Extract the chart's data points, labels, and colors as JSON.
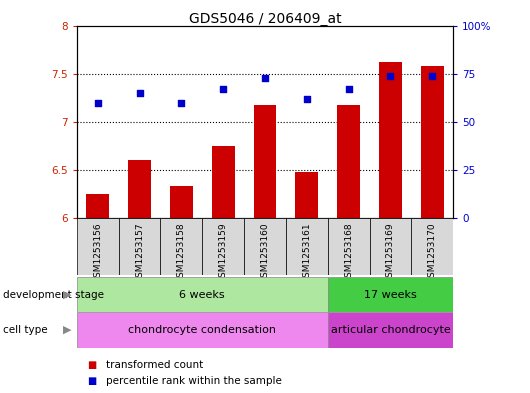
{
  "title": "GDS5046 / 206409_at",
  "samples": [
    "GSM1253156",
    "GSM1253157",
    "GSM1253158",
    "GSM1253159",
    "GSM1253160",
    "GSM1253161",
    "GSM1253168",
    "GSM1253169",
    "GSM1253170"
  ],
  "bar_values": [
    6.25,
    6.6,
    6.33,
    6.75,
    7.17,
    6.48,
    7.17,
    7.62,
    7.58
  ],
  "dot_values": [
    60,
    65,
    60,
    67,
    73,
    62,
    67,
    74,
    74
  ],
  "bar_color": "#cc0000",
  "dot_color": "#0000cc",
  "ylim_left": [
    6.0,
    8.0
  ],
  "ylim_right": [
    0,
    100
  ],
  "yticks_left": [
    6.0,
    6.5,
    7.0,
    7.5,
    8.0
  ],
  "yticks_right": [
    0,
    25,
    50,
    75,
    100
  ],
  "ytick_labels_right": [
    "0",
    "25",
    "50",
    "75",
    "100%"
  ],
  "grid_vals": [
    6.5,
    7.0,
    7.5
  ],
  "dev_stages": [
    {
      "label": "6 weeks",
      "start": 0,
      "end": 6,
      "color": "#aee8a0"
    },
    {
      "label": "17 weeks",
      "start": 6,
      "end": 9,
      "color": "#44cc44"
    }
  ],
  "cell_types": [
    {
      "label": "chondrocyte condensation",
      "start": 0,
      "end": 6,
      "color": "#ee88ee"
    },
    {
      "label": "articular chondrocyte",
      "start": 6,
      "end": 9,
      "color": "#cc44cc"
    }
  ],
  "dev_stage_label": "development stage",
  "cell_type_label": "cell type",
  "legend_bar": "transformed count",
  "legend_dot": "percentile rank within the sample",
  "bg_color": "#ffffff",
  "plot_bg_color": "#ffffff",
  "tick_label_color_left": "#cc2200",
  "tick_label_color_right": "#0000cc",
  "sample_bg_color": "#d8d8d8"
}
